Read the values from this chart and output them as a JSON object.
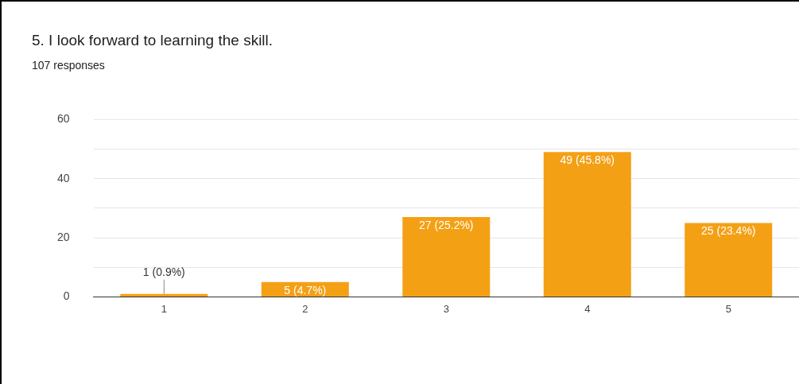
{
  "chart_data": {
    "type": "bar",
    "title": "5. I look forward to learning the skill.",
    "subtitle": "107 responses",
    "categories": [
      "1",
      "2",
      "3",
      "4",
      "5"
    ],
    "values": [
      1,
      5,
      27,
      49,
      25
    ],
    "value_labels": [
      "1 (0.9%)",
      "5 (4.7%)",
      "27 (25.2%)",
      "49 (45.8%)",
      "25 (23.4%)"
    ],
    "color": "#f4a015",
    "ylim": [
      0,
      60
    ],
    "yticks": [
      0,
      {
        "value": 10,
        "label": null
      },
      20,
      {
        "value": 30,
        "label": null
      },
      40,
      {
        "value": 50,
        "label": null
      },
      60
    ],
    "grid": "y",
    "legend": false
  }
}
